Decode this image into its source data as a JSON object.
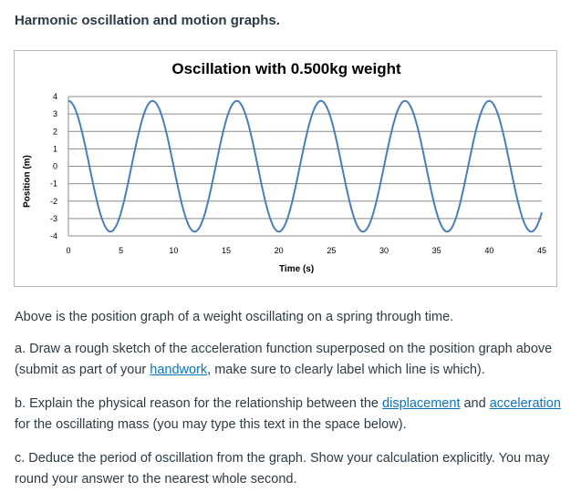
{
  "heading": "Harmonic oscillation and motion graphs.",
  "chart_data": {
    "type": "line",
    "title": "Oscillation with 0.500kg weight",
    "xlabel": "Time (s)",
    "ylabel": "Position (m)",
    "xlim": [
      0,
      45
    ],
    "ylim": [
      -4,
      4
    ],
    "xticks": [
      0,
      5,
      10,
      15,
      20,
      25,
      30,
      35,
      40,
      45
    ],
    "yticks": [
      4,
      3,
      2,
      1,
      0,
      -1,
      -2,
      -3,
      -4
    ],
    "grid": true,
    "series": [
      {
        "color": "#4a7ebb",
        "function": "3.75*cos(2*pi*t/8)",
        "amplitude": 3.75,
        "period": 8,
        "t_range": [
          0,
          45
        ]
      }
    ]
  },
  "intro": "Above is the position graph of a weight oscillating on a spring through time.",
  "part_a": {
    "before": "a. Draw a rough sketch of the acceleration function superposed on the position graph above (submit as part of your ",
    "link": "handwork",
    "after": ", make sure to clearly label which line is which)."
  },
  "part_b": {
    "p1": "b. Explain the physical reason for the relationship between the ",
    "link1": "displacement",
    "p2": " and ",
    "link2": "acceleration",
    "p3": " for the oscillating mass (you may type this text in the space below)."
  },
  "part_c": "c. Deduce the period of oscillation from the graph. Show your calculation explicitly. You may round your answer to the nearest whole second.",
  "colors": {
    "link": "#0b73bd",
    "text": "#2d3b45",
    "curve": "#4a7ebb"
  }
}
